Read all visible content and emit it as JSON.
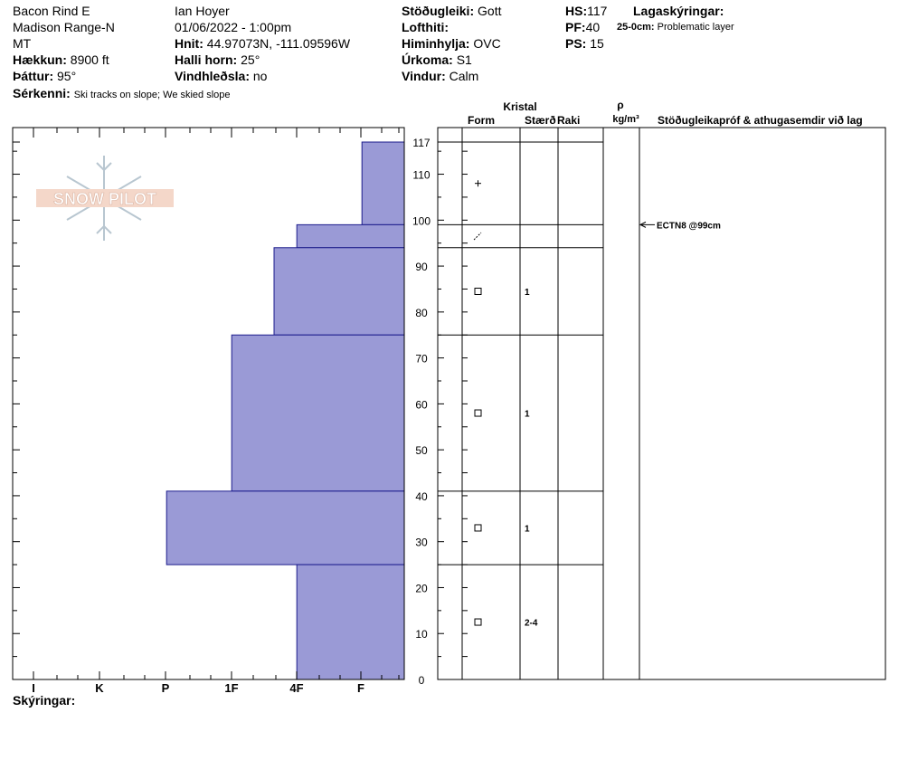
{
  "header": {
    "location": "Bacon Rind E",
    "range": "Madison Range-N",
    "state": "MT",
    "elevation_label": "Hækkun:",
    "elevation": "8900 ft",
    "aspect_label": "Þáttur:",
    "aspect": "95°",
    "features_label": "Sérkenni:",
    "features": "Ski tracks on slope; We skied slope",
    "observer": "Ian Hoyer",
    "datetime": "01/06/2022 - 1:00pm",
    "coords_label": "Hnit:",
    "coords": "44.97073N, -111.09596W",
    "slope_label": "Halli horn:",
    "slope": "25°",
    "wind_loading_label": "Vindhleðsla:",
    "wind_loading": "no",
    "stability_label": "Stöðugleiki:",
    "stability": "Gott",
    "air_temp_label": "Lofthiti:",
    "air_temp": "",
    "sky_label": "Himinhylja:",
    "sky": "OVC",
    "precip_label": "Úrkoma:",
    "precip": "S1",
    "wind_label": "Vindur:",
    "wind": "Calm",
    "hs_label": "HS:",
    "hs": "117",
    "pf_label": "PF:",
    "pf": "40",
    "ps_label": "PS:",
    "ps": "15",
    "layer_notes_label": "Lagaskýringar:",
    "layer_note_depth": "25-0cm:",
    "layer_note_text": "Problematic layer"
  },
  "legend_label": "Skýringar:",
  "table_headers": {
    "crystal": "Kristal",
    "form": "Form",
    "size": "Stærð",
    "moisture": "Raki",
    "rho": "ρ",
    "density_unit": "kg/m³",
    "comments": "Stöðugleikapróf & athugasemdir við lag"
  },
  "logo_text": "SNOW PILOT",
  "chart_data": {
    "type": "bar",
    "orientation": "horizontal",
    "title": "",
    "xlabel": "",
    "ylabel": "",
    "ylim": [
      0,
      117
    ],
    "y_ticks": [
      0,
      10,
      20,
      30,
      40,
      50,
      60,
      70,
      80,
      90,
      100,
      110,
      117
    ],
    "hardness_scale": [
      "I",
      "K",
      "P",
      "1F",
      "4F",
      "F"
    ],
    "layers": [
      {
        "top": 117,
        "bottom": 99,
        "hardness": "F",
        "hardness_value": 0.65,
        "form": "+",
        "size": ""
      },
      {
        "top": 99,
        "bottom": 94,
        "hardness": "4F",
        "hardness_value": 1.65,
        "form": "/",
        "size": ""
      },
      {
        "top": 94,
        "bottom": 75,
        "hardness": "4F+",
        "hardness_value": 2.0,
        "form": "□",
        "size": "1"
      },
      {
        "top": 75,
        "bottom": 41,
        "hardness": "1F+",
        "hardness_value": 2.65,
        "form": "□",
        "size": "1"
      },
      {
        "top": 41,
        "bottom": 25,
        "hardness": "P",
        "hardness_value": 3.65,
        "form": "□",
        "size": "1"
      },
      {
        "top": 25,
        "bottom": 0,
        "hardness": "4F",
        "hardness_value": 1.65,
        "form": "□",
        "size": "2-4"
      }
    ],
    "tests": [
      {
        "depth": 99,
        "label": "ECTN8 @99cm"
      }
    ]
  }
}
